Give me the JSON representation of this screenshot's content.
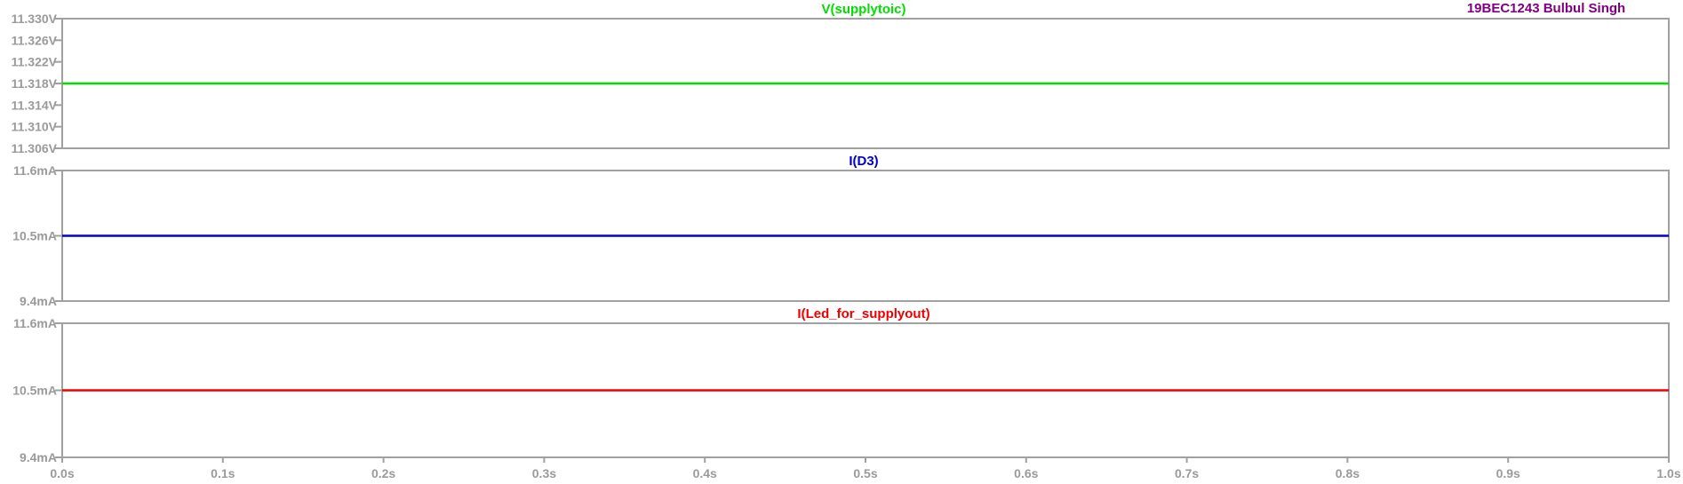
{
  "annotation": {
    "text": "19BEC1243 Bulbul Singh",
    "color": "#800080"
  },
  "chart_data": {
    "type": "line",
    "x_axis": {
      "range": [
        0.0,
        1.0
      ],
      "ticks": [
        0.0,
        0.1,
        0.2,
        0.3,
        0.4,
        0.5,
        0.6,
        0.7,
        0.8,
        0.9,
        1.0
      ],
      "tick_labels": [
        "0.0s",
        "0.1s",
        "0.2s",
        "0.3s",
        "0.4s",
        "0.5s",
        "0.6s",
        "0.7s",
        "0.8s",
        "0.9s",
        "1.0s"
      ]
    },
    "panes": [
      {
        "series_name": "V(supplytoic)",
        "color": "#00e000",
        "ylim": [
          11.306,
          11.33
        ],
        "y_ticks": [
          11.33,
          11.326,
          11.322,
          11.318,
          11.314,
          11.31,
          11.306
        ],
        "y_tick_labels": [
          "11.330V",
          "11.326V",
          "11.322V",
          "11.318V",
          "11.314V",
          "11.310V",
          "11.306V"
        ],
        "x": [
          0.0,
          1.0
        ],
        "y": [
          11.318,
          11.318
        ]
      },
      {
        "series_name": "I(D3)",
        "color": "#0000cc",
        "ylim": [
          9.4,
          11.6
        ],
        "y_ticks": [
          11.6,
          10.5,
          9.4
        ],
        "y_tick_labels": [
          "11.6mA",
          "10.5mA",
          "9.4mA"
        ],
        "x": [
          0.0,
          1.0
        ],
        "y": [
          10.5,
          10.5
        ]
      },
      {
        "series_name": "I(Led_for_supplyout)",
        "color": "#ee0000",
        "ylim": [
          9.4,
          11.6
        ],
        "y_ticks": [
          11.6,
          10.5,
          9.4
        ],
        "y_tick_labels": [
          "11.6mA",
          "10.5mA",
          "9.4mA"
        ],
        "x": [
          0.0,
          1.0
        ],
        "y": [
          10.5,
          10.5
        ]
      }
    ]
  }
}
